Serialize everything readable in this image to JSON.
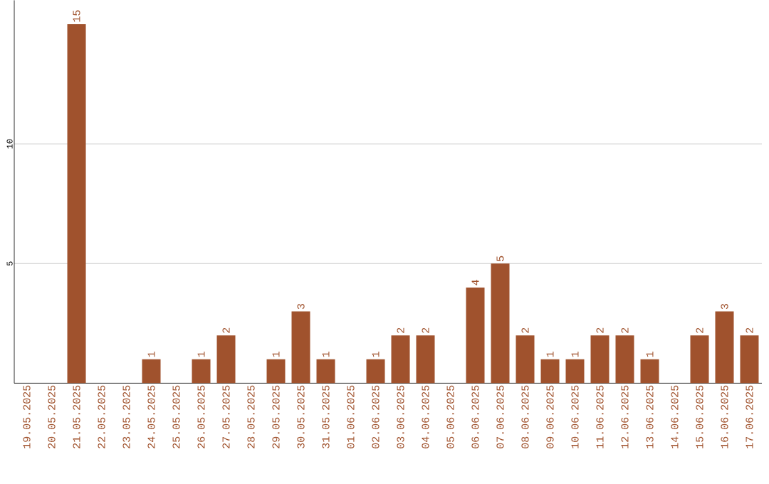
{
  "chart_data": {
    "type": "bar",
    "categories": [
      "19.05.2025",
      "20.05.2025",
      "21.05.2025",
      "22.05.2025",
      "23.05.2025",
      "24.05.2025",
      "25.05.2025",
      "26.05.2025",
      "27.05.2025",
      "28.05.2025",
      "29.05.2025",
      "30.05.2025",
      "31.05.2025",
      "01.06.2025",
      "02.06.2025",
      "03.06.2025",
      "04.06.2025",
      "05.06.2025",
      "06.06.2025",
      "07.06.2025",
      "08.06.2025",
      "09.06.2025",
      "10.06.2025",
      "11.06.2025",
      "12.06.2025",
      "13.06.2025",
      "14.06.2025",
      "15.06.2025",
      "16.06.2025",
      "17.06.2025"
    ],
    "values": [
      0,
      0,
      15,
      0,
      0,
      1,
      0,
      1,
      2,
      0,
      1,
      3,
      1,
      0,
      1,
      2,
      2,
      0,
      4,
      5,
      2,
      1,
      1,
      2,
      2,
      1,
      0,
      2,
      3,
      2
    ],
    "value_labels": [
      null,
      null,
      "15",
      null,
      null,
      "1",
      null,
      "1",
      "2",
      null,
      "1",
      "3",
      "1",
      null,
      "1",
      "2",
      "2",
      null,
      "4",
      "5",
      "2",
      "1",
      "1",
      "2",
      "2",
      "1",
      null,
      "2",
      "3",
      "2"
    ],
    "color": "#a0522d",
    "ylim": [
      0,
      16
    ],
    "yticks": [
      5,
      10
    ],
    "grid": "y"
  }
}
